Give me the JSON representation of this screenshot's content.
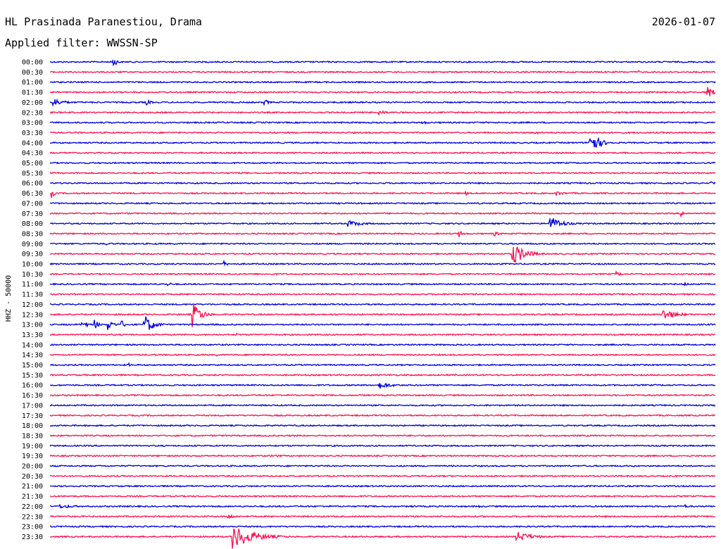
{
  "chart_data": {
    "type": "line",
    "title": "HL Prasinada Paranestiou, Drama",
    "date": "2026-01-07",
    "subtitle": "Applied filter: WWSSN-SP",
    "ylabel": "HHZ - 50000",
    "x_unit": "minutes",
    "xlim": [
      0,
      30
    ],
    "colors": {
      "even_trace": "#0000e0",
      "odd_trace": "#ff1050"
    },
    "rows": [
      {
        "label": "00:00",
        "events": [
          {
            "x": 2.8,
            "a": 10,
            "d": 0.4
          },
          {
            "x": 21.4,
            "a": 1.5,
            "d": 0.5
          }
        ]
      },
      {
        "label": "00:30",
        "events": [
          {
            "x": 26.5,
            "a": 4,
            "d": 0.15
          }
        ]
      },
      {
        "label": "01:00",
        "events": []
      },
      {
        "label": "01:30",
        "events": [
          {
            "x": 29.6,
            "a": 14,
            "d": 0.5
          }
        ]
      },
      {
        "label": "02:00",
        "events": [
          {
            "x": 0.1,
            "a": 7,
            "d": 1.0
          },
          {
            "x": 4.3,
            "a": 5,
            "d": 0.5
          },
          {
            "x": 9.6,
            "a": 6,
            "d": 0.5
          }
        ]
      },
      {
        "label": "02:30",
        "events": [
          {
            "x": 14.8,
            "a": 4,
            "d": 0.8
          }
        ]
      },
      {
        "label": "03:00",
        "events": [
          {
            "x": 16.7,
            "a": 3,
            "d": 0.8
          }
        ]
      },
      {
        "label": "03:30",
        "events": [
          {
            "x": 21.8,
            "a": 3,
            "d": 0.8
          }
        ]
      },
      {
        "label": "04:00",
        "events": [
          {
            "x": 24.3,
            "a": 18,
            "d": 0.9
          }
        ]
      },
      {
        "label": "04:30",
        "events": []
      },
      {
        "label": "05:00",
        "events": []
      },
      {
        "label": "05:30",
        "events": []
      },
      {
        "label": "06:00",
        "events": [
          {
            "x": 29.8,
            "a": 3,
            "d": 0.2
          }
        ]
      },
      {
        "label": "06:30",
        "events": [
          {
            "x": 0.05,
            "a": 8,
            "d": 0.3
          },
          {
            "x": 18.7,
            "a": 4,
            "d": 0.3
          },
          {
            "x": 22.8,
            "a": 4,
            "d": 0.8
          }
        ]
      },
      {
        "label": "07:00",
        "events": []
      },
      {
        "label": "07:30",
        "events": [
          {
            "x": 28.4,
            "a": 5,
            "d": 0.5
          }
        ]
      },
      {
        "label": "08:00",
        "events": [
          {
            "x": 13.4,
            "a": 5,
            "d": 1.5
          },
          {
            "x": 22.5,
            "a": 11,
            "d": 1.2
          }
        ]
      },
      {
        "label": "08:30",
        "events": [
          {
            "x": 18.4,
            "a": 6,
            "d": 0.5
          },
          {
            "x": 20.0,
            "a": 4,
            "d": 0.6
          }
        ]
      },
      {
        "label": "09:00",
        "events": [
          {
            "x": 2.5,
            "a": 2,
            "d": 1.0
          }
        ]
      },
      {
        "label": "09:30",
        "events": [
          {
            "x": 20.8,
            "a": 18,
            "d": 1.2
          }
        ]
      },
      {
        "label": "10:00",
        "events": [
          {
            "x": 7.8,
            "a": 5,
            "d": 0.4
          }
        ]
      },
      {
        "label": "10:30",
        "events": [
          {
            "x": 25.5,
            "a": 4,
            "d": 0.6
          }
        ]
      },
      {
        "label": "11:00",
        "events": [
          {
            "x": 5.3,
            "a": 3,
            "d": 0.5
          },
          {
            "x": 28.6,
            "a": 3,
            "d": 0.4
          }
        ]
      },
      {
        "label": "11:30",
        "events": []
      },
      {
        "label": "12:00",
        "events": []
      },
      {
        "label": "12:30",
        "events": [
          {
            "x": 6.4,
            "a": 20,
            "d": 0.8
          },
          {
            "x": 27.6,
            "a": 9,
            "d": 1.3
          }
        ]
      },
      {
        "label": "13:00",
        "events": [
          {
            "x": 1.4,
            "a": 9,
            "d": 0.5
          },
          {
            "x": 2.0,
            "a": 8,
            "d": 0.4
          },
          {
            "x": 2.6,
            "a": 9,
            "d": 0.5
          },
          {
            "x": 3.2,
            "a": 7,
            "d": 0.4
          },
          {
            "x": 4.2,
            "a": 18,
            "d": 0.8
          }
        ]
      },
      {
        "label": "13:30",
        "events": [
          {
            "x": 8.4,
            "a": 3,
            "d": 0.3
          }
        ]
      },
      {
        "label": "14:00",
        "events": []
      },
      {
        "label": "14:30",
        "events": [
          {
            "x": 7.5,
            "a": 2,
            "d": 0.3
          },
          {
            "x": 9.8,
            "a": 2,
            "d": 0.3
          }
        ]
      },
      {
        "label": "15:00",
        "events": [
          {
            "x": 3.5,
            "a": 4,
            "d": 0.3
          }
        ]
      },
      {
        "label": "15:30",
        "events": []
      },
      {
        "label": "16:00",
        "events": [
          {
            "x": 14.8,
            "a": 6,
            "d": 1.2
          }
        ]
      },
      {
        "label": "16:30",
        "events": []
      },
      {
        "label": "17:00",
        "events": [
          {
            "x": 10.8,
            "a": 2,
            "d": 0.2
          }
        ]
      },
      {
        "label": "17:30",
        "events": []
      },
      {
        "label": "18:00",
        "events": []
      },
      {
        "label": "18:30",
        "events": []
      },
      {
        "label": "19:00",
        "events": []
      },
      {
        "label": "19:30",
        "events": [
          {
            "x": 10.0,
            "a": 2,
            "d": 1.5
          }
        ]
      },
      {
        "label": "20:00",
        "events": [
          {
            "x": 23.3,
            "a": 2,
            "d": 0.4
          }
        ]
      },
      {
        "label": "20:30",
        "events": []
      },
      {
        "label": "21:00",
        "events": []
      },
      {
        "label": "21:30",
        "events": []
      },
      {
        "label": "22:00",
        "events": [
          {
            "x": 0.4,
            "a": 3,
            "d": 2.0
          },
          {
            "x": 16.3,
            "a": 3,
            "d": 0.3
          },
          {
            "x": 19.3,
            "a": 3,
            "d": 0.3
          },
          {
            "x": 28.6,
            "a": 3,
            "d": 0.4
          }
        ]
      },
      {
        "label": "22:30",
        "events": [
          {
            "x": 8.0,
            "a": 4,
            "d": 0.8
          }
        ]
      },
      {
        "label": "23:00",
        "events": []
      },
      {
        "label": "23:30",
        "events": [
          {
            "x": 8.2,
            "a": 18,
            "d": 2.0
          },
          {
            "x": 21.0,
            "a": 8,
            "d": 1.5
          }
        ]
      }
    ]
  }
}
